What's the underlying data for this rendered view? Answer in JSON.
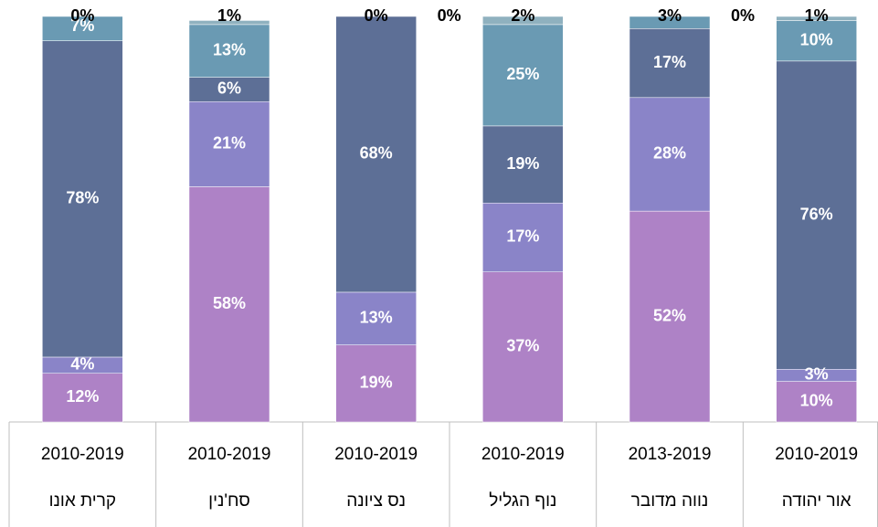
{
  "chart_data": {
    "type": "stacked_bar",
    "categories": [
      "קרית אונו",
      "סח'נין",
      "נס ציונה",
      "נוף הגליל",
      "נווה מדובר",
      "אור יהודה"
    ],
    "periods": [
      "2010-2019",
      "2010-2019",
      "2010-2019",
      "2010-2019",
      "2013-2019",
      "2010-2019"
    ],
    "series": [
      {
        "color": "#ae82c6",
        "values": [
          12,
          58,
          19,
          37,
          52,
          10
        ],
        "value_labels": [
          "12%",
          "58%",
          "19%",
          "37%",
          "52%",
          "10%"
        ]
      },
      {
        "color": "#8a84c8",
        "values": [
          4,
          21,
          13,
          17,
          28,
          3
        ],
        "value_labels": [
          "4%",
          "21%",
          "13%",
          "17%",
          "28%",
          "3%"
        ]
      },
      {
        "color": "#5d6f96",
        "values": [
          78,
          6,
          68,
          19,
          17,
          76
        ],
        "value_labels": [
          "78%",
          "6%",
          "68%",
          "19%",
          "17%",
          "76%"
        ]
      },
      {
        "color": "#6a9ab3",
        "values": [
          7,
          13,
          0,
          25,
          3,
          10
        ],
        "value_labels": [
          "7%",
          "13%",
          "0%",
          "25%",
          "3%",
          "10%"
        ]
      },
      {
        "color": "#8fb1bf",
        "values": [
          0,
          1,
          0,
          2,
          0,
          1
        ],
        "value_labels": [
          "0%",
          "1%",
          "0%",
          "2%",
          "0%",
          "1%"
        ]
      }
    ],
    "ylim": [
      0,
      100
    ]
  }
}
